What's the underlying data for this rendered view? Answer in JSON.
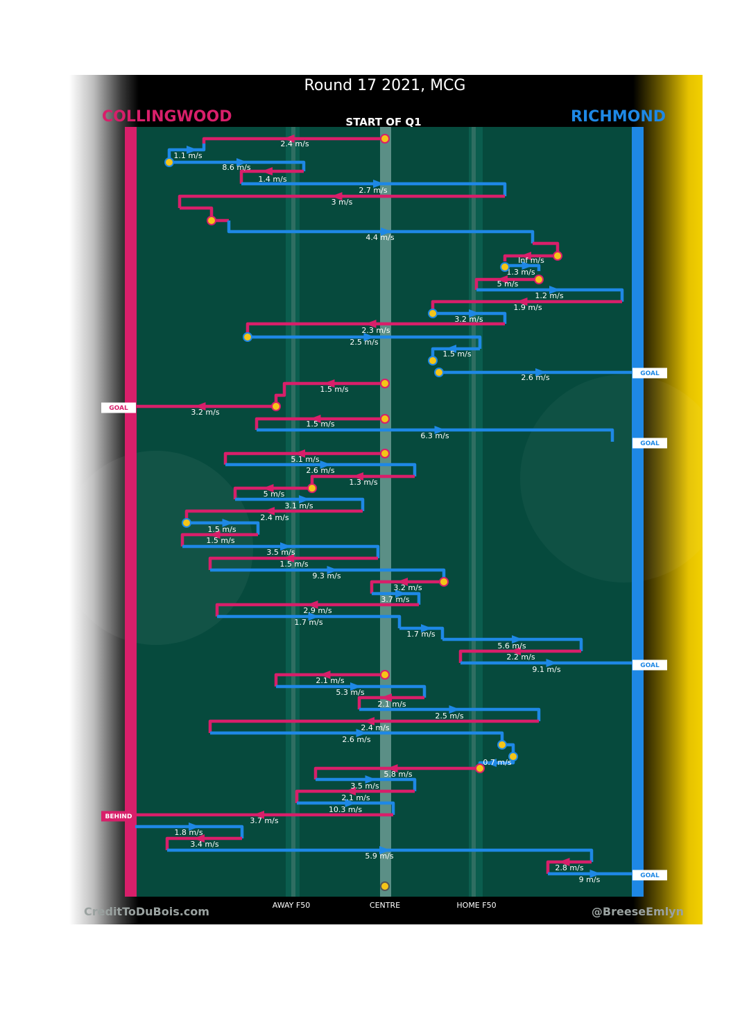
{
  "title": "Round 17 2021, MCG",
  "subtitle": "START OF Q1",
  "teams": {
    "left": "COLLINGWOOD",
    "right": "RICHMOND"
  },
  "colors": {
    "collingwood": "#d81f6a",
    "richmond": "#1e88e5",
    "field": "#064a3d",
    "node": "#f5c518",
    "goal_tag_bg": "#ffffff"
  },
  "axis_labels": {
    "away": "AWAY F50",
    "centre": "CENTRE",
    "home": "HOME F50"
  },
  "credits": {
    "left": "CreditToDuBois.com",
    "right": "@BreeseEmlyn"
  },
  "chart_data": {
    "type": "line",
    "x_axis": {
      "ticks": [
        "AWAY F50",
        "CENTRE",
        "HOME F50"
      ]
    },
    "paths": [
      {
        "team": "collingwood",
        "label": "2.4 m/s"
      },
      {
        "team": "richmond",
        "label": "1.1 m/s"
      },
      {
        "team": "richmond",
        "label": "8.6 m/s"
      },
      {
        "team": "collingwood",
        "label": "1.4 m/s"
      },
      {
        "team": "richmond",
        "label": "2.7 m/s"
      },
      {
        "team": "collingwood",
        "label": "3 m/s"
      },
      {
        "team": "collingwood",
        "label": ""
      },
      {
        "team": "richmond",
        "label": "4.4 m/s"
      },
      {
        "team": "collingwood",
        "label": "Inf m/s"
      },
      {
        "team": "richmond",
        "label": "1.3 m/s"
      },
      {
        "team": "collingwood",
        "label": "5 m/s"
      },
      {
        "team": "richmond",
        "label": "1.2 m/s"
      },
      {
        "team": "collingwood",
        "label": "1.9 m/s"
      },
      {
        "team": "richmond",
        "label": "3.2 m/s"
      },
      {
        "team": "collingwood",
        "label": "2.3 m/s"
      },
      {
        "team": "richmond",
        "label": "2.5 m/s"
      },
      {
        "team": "richmond",
        "label": "1.5 m/s"
      },
      {
        "team": "richmond",
        "label": "2.6 m/s"
      },
      {
        "team": "collingwood",
        "label": "1.5 m/s"
      },
      {
        "team": "collingwood",
        "label": "3.2 m/s"
      },
      {
        "team": "collingwood",
        "label": "1.5 m/s"
      },
      {
        "team": "richmond",
        "label": "6.3 m/s"
      },
      {
        "team": "collingwood",
        "label": "5.1 m/s"
      },
      {
        "team": "richmond",
        "label": "2.6 m/s"
      },
      {
        "team": "collingwood",
        "label": "1.3 m/s"
      },
      {
        "team": "collingwood",
        "label": "5 m/s"
      },
      {
        "team": "richmond",
        "label": "3.1 m/s"
      },
      {
        "team": "collingwood",
        "label": "2.4 m/s"
      },
      {
        "team": "richmond",
        "label": "1.5 m/s"
      },
      {
        "team": "collingwood",
        "label": "1.5 m/s"
      },
      {
        "team": "richmond",
        "label": "3.5 m/s"
      },
      {
        "team": "collingwood",
        "label": "1.5 m/s"
      },
      {
        "team": "richmond",
        "label": "9.3 m/s"
      },
      {
        "team": "collingwood",
        "label": "3.2 m/s"
      },
      {
        "team": "richmond",
        "label": "3.7 m/s"
      },
      {
        "team": "collingwood",
        "label": "2.9 m/s"
      },
      {
        "team": "richmond",
        "label": "1.7 m/s"
      },
      {
        "team": "richmond",
        "label": "1.7 m/s"
      },
      {
        "team": "richmond",
        "label": "5.6 m/s"
      },
      {
        "team": "collingwood",
        "label": "2.2 m/s"
      },
      {
        "team": "richmond",
        "label": "9.1 m/s"
      },
      {
        "team": "collingwood",
        "label": "2.1 m/s"
      },
      {
        "team": "richmond",
        "label": "5.3 m/s"
      },
      {
        "team": "collingwood",
        "label": "2.1 m/s"
      },
      {
        "team": "richmond",
        "label": "2.5 m/s"
      },
      {
        "team": "collingwood",
        "label": "2.4 m/s"
      },
      {
        "team": "richmond",
        "label": "2.6 m/s"
      },
      {
        "team": "richmond",
        "label": ""
      },
      {
        "team": "richmond",
        "label": "0.7 m/s"
      },
      {
        "team": "collingwood",
        "label": "5.8 m/s"
      },
      {
        "team": "richmond",
        "label": "3.5 m/s"
      },
      {
        "team": "collingwood",
        "label": "2.1 m/s"
      },
      {
        "team": "richmond",
        "label": "10.3 m/s"
      },
      {
        "team": "collingwood",
        "label": "3.7 m/s"
      },
      {
        "team": "richmond",
        "label": "1.8 m/s"
      },
      {
        "team": "collingwood",
        "label": "3.4 m/s"
      },
      {
        "team": "richmond",
        "label": "5.9 m/s"
      },
      {
        "team": "collingwood",
        "label": "2.8 m/s"
      },
      {
        "team": "richmond",
        "label": "9 m/s"
      }
    ],
    "events": [
      {
        "team": "richmond",
        "type": "GOAL"
      },
      {
        "team": "collingwood",
        "type": "GOAL"
      },
      {
        "team": "richmond",
        "type": "GOAL"
      },
      {
        "team": "richmond",
        "type": "GOAL"
      },
      {
        "team": "collingwood",
        "type": "BEHIND"
      },
      {
        "team": "richmond",
        "type": "GOAL"
      }
    ]
  }
}
